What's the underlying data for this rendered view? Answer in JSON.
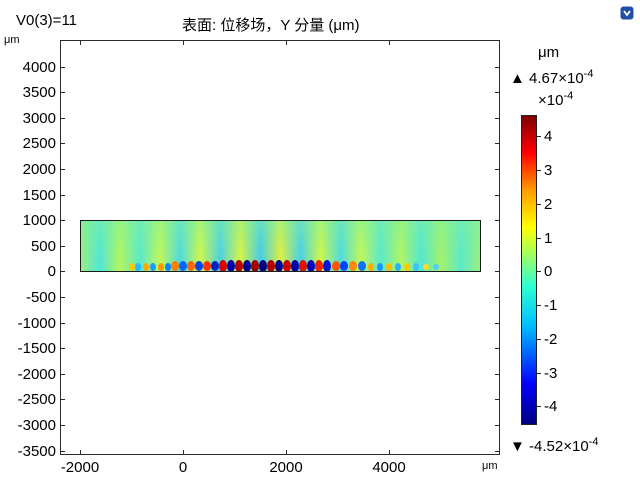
{
  "header": {
    "parameter": "V0(3)=11",
    "title": "表面: 位移场，Y 分量 (μm)"
  },
  "axes": {
    "unit_x": "μm",
    "unit_y": "μm",
    "y_ticks": [
      "4000",
      "3500",
      "3000",
      "2500",
      "2000",
      "1500",
      "1000",
      "500",
      "0",
      "-500",
      "-1000",
      "-1500",
      "-2000",
      "-2500",
      "-3000",
      "-3500"
    ],
    "x_ticks": [
      "-2000",
      "0",
      "2000",
      "4000"
    ]
  },
  "colorbar": {
    "unit": "μm",
    "max_prefix": "4.67×10",
    "max_exp": "-4",
    "multiplier": "×10",
    "multiplier_exp": "-4",
    "min_prefix": "-4.52×10",
    "min_exp": "-4",
    "ticks": [
      "4",
      "3",
      "2",
      "1",
      "0",
      "-1",
      "-2",
      "-3",
      "-4"
    ]
  },
  "icons": {
    "corner": "navigation-icon"
  }
}
